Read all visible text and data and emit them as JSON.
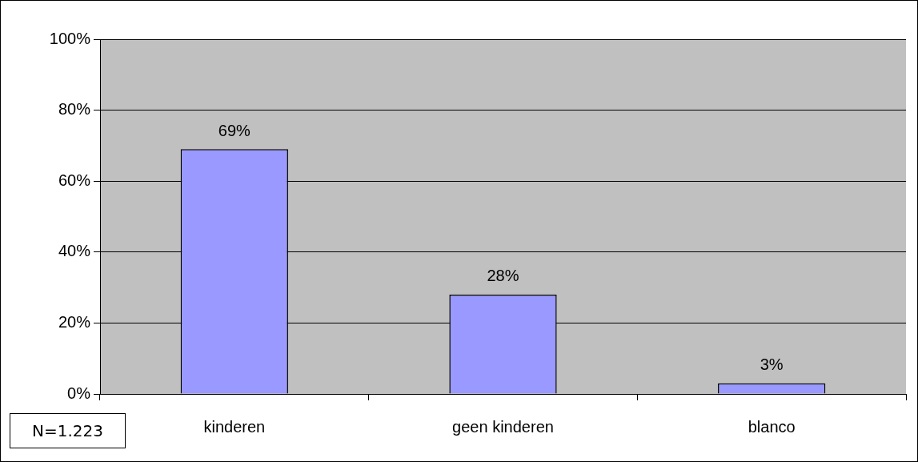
{
  "chart_data": {
    "type": "bar",
    "categories": [
      "kinderen",
      "geen kinderen",
      "blanco"
    ],
    "values": [
      69,
      28,
      3
    ],
    "color": "#9999ff",
    "value_labels": [
      "69%",
      "28%",
      "3%"
    ],
    "ylim": [
      0,
      100
    ],
    "yticks": [
      {
        "value": 0,
        "label": "0%"
      },
      {
        "value": 20,
        "label": "20%"
      },
      {
        "value": 40,
        "label": "40%"
      },
      {
        "value": 60,
        "label": "60%"
      },
      {
        "value": 80,
        "label": "80%"
      },
      {
        "value": 100,
        "label": "100%"
      }
    ],
    "grid": "y",
    "legend": false,
    "annotations": [
      "N=1.223"
    ]
  }
}
